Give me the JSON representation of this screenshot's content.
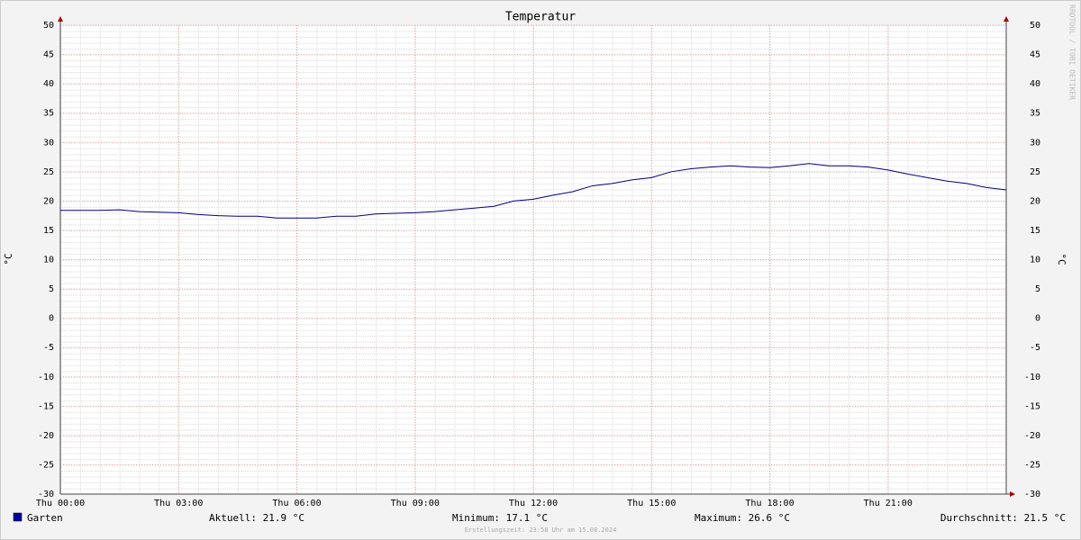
{
  "chart_data": {
    "type": "line",
    "title": "Temperatur",
    "y_label": "°C",
    "watermark": "RRDTOOL / TOBI OETIKER",
    "footer": "Erstellungszeit: 23:58 Uhr am 15.08.2024",
    "legend_stats": [
      "Aktuell: 21.9 °C",
      "Minimum: 17.1 °C",
      "Maximum: 26.6 °C",
      "Durchschnitt: 21.5 °C"
    ],
    "xlim": [
      0,
      24
    ],
    "xticks": [
      {
        "value": 0,
        "label": "Thu 00:00"
      },
      {
        "value": 3,
        "label": "Thu 03:00"
      },
      {
        "value": 6,
        "label": "Thu 06:00"
      },
      {
        "value": 9,
        "label": "Thu 09:00"
      },
      {
        "value": 12,
        "label": "Thu 12:00"
      },
      {
        "value": 15,
        "label": "Thu 15:00"
      },
      {
        "value": 18,
        "label": "Thu 18:00"
      },
      {
        "value": 21,
        "label": "Thu 21:00"
      }
    ],
    "ylim": [
      -30,
      50
    ],
    "yticks": [
      -30,
      -25,
      -20,
      -15,
      -10,
      -5,
      0,
      5,
      10,
      15,
      20,
      25,
      30,
      35,
      40,
      45,
      50
    ],
    "grid": true,
    "x": [
      0,
      0.5,
      1,
      1.5,
      2,
      2.5,
      3,
      3.5,
      4,
      4.5,
      5,
      5.5,
      6,
      6.5,
      7,
      7.5,
      8,
      8.5,
      9,
      9.5,
      10,
      10.5,
      11,
      11.5,
      12,
      12.5,
      13,
      13.5,
      14,
      14.5,
      15,
      15.5,
      16,
      16.5,
      17,
      17.5,
      18,
      18.5,
      19,
      19.5,
      20,
      20.5,
      21,
      21.5,
      22,
      22.5,
      23,
      23.5,
      24
    ],
    "series": [
      {
        "name": "Garten",
        "color": "#000088",
        "values": [
          18.4,
          18.4,
          18.4,
          18.5,
          18.2,
          18.1,
          18.0,
          17.7,
          17.5,
          17.4,
          17.4,
          17.1,
          17.1,
          17.1,
          17.4,
          17.4,
          17.8,
          17.9,
          18.0,
          18.2,
          18.5,
          18.8,
          19.1,
          20.0,
          20.3,
          21.0,
          21.6,
          22.6,
          23.0,
          23.6,
          24.0,
          25.0,
          25.5,
          25.8,
          26.0,
          25.8,
          25.7,
          26.0,
          26.4,
          26.0,
          26.0,
          25.8,
          25.3,
          24.6,
          24.0,
          23.4,
          23.0,
          22.3,
          21.9
        ]
      }
    ]
  }
}
